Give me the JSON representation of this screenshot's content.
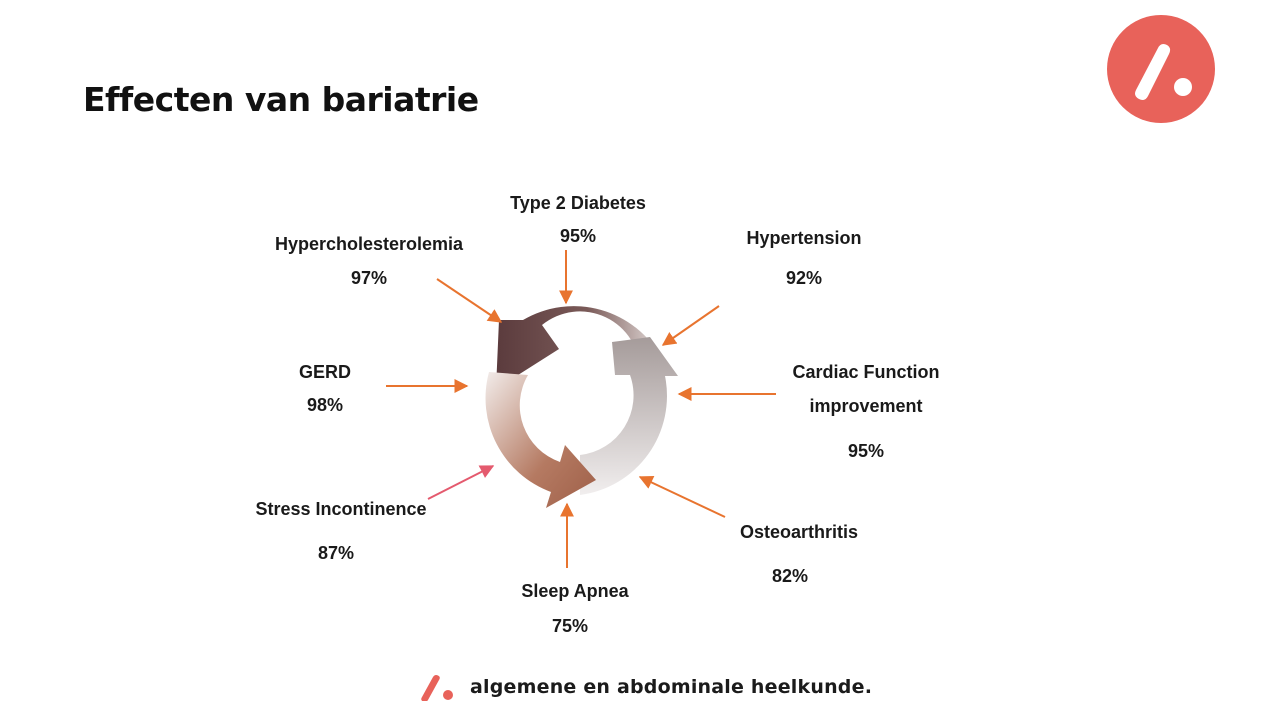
{
  "title": "Effecten van bariatrie",
  "colors": {
    "accent": "#e8625a",
    "arrow": "#e8742f",
    "pink_arrow": "#e45a6e"
  },
  "outcomes": {
    "type2_diabetes": {
      "name": "Type 2 Diabetes",
      "value": "95%"
    },
    "hypertension": {
      "name": "Hypertension",
      "value": "92%"
    },
    "hypercholesterolemia": {
      "name": "Hypercholesterolemia",
      "value": "97%"
    },
    "gerd": {
      "name": "GERD",
      "value": "98%"
    },
    "cardiac": {
      "name_line1": "Cardiac Function",
      "name_line2": "improvement",
      "value": "95%"
    },
    "stress_incontinence": {
      "name": "Stress Incontinence",
      "value": "87%"
    },
    "osteoarthritis": {
      "name": "Osteoarthritis",
      "value": "82%"
    },
    "sleep_apnea": {
      "name": "Sleep Apnea",
      "value": "75%"
    }
  },
  "footer": {
    "text": "algemene en abdominale heelkunde."
  }
}
